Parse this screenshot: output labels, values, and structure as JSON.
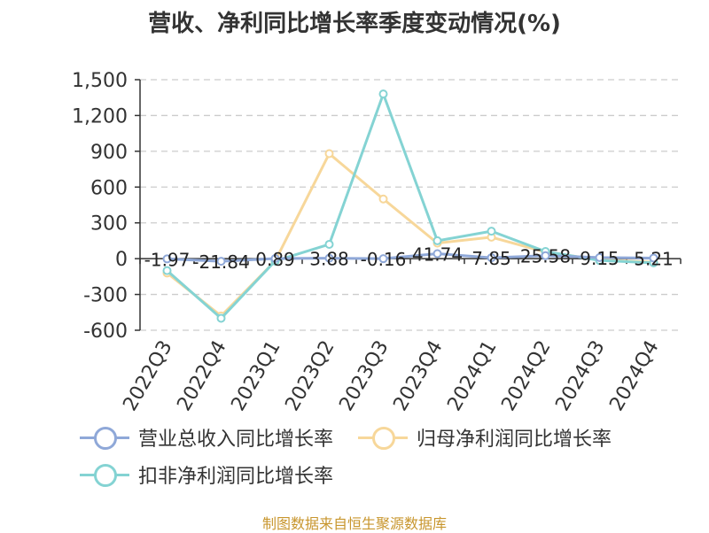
{
  "title": "营收、净利同比增长率季度变动情况(%)",
  "source": "制图数据来自恒生聚源数据库",
  "chart_data": {
    "type": "line",
    "title": "营收、净利同比增长率季度变动情况(%)",
    "categories": [
      "2022Q3",
      "2022Q4",
      "2023Q1",
      "2023Q2",
      "2023Q3",
      "2023Q4",
      "2024Q1",
      "2024Q2",
      "2024Q3",
      "2024Q4"
    ],
    "ylim": [
      -600,
      1500
    ],
    "yticks": [
      -600,
      -300,
      0,
      300,
      600,
      900,
      1200,
      1500
    ],
    "ytick_labels": [
      "-600",
      "-300",
      "0",
      "300",
      "600",
      "900",
      "1,200",
      "1,500"
    ],
    "grid": true,
    "legend_position": "bottom-left",
    "series": [
      {
        "name": "营业总收入同比增长率",
        "color": "#8fa8d8",
        "values": [
          -1.97,
          -21.84,
          0.89,
          3.88,
          -0.16,
          41.74,
          7.85,
          25.58,
          9.15,
          5.21
        ],
        "labels": [
          "-1.97",
          "-21.84",
          "0.89",
          "3.88",
          "-0.16",
          "41.74",
          "7.85",
          "25.58",
          "9.15",
          "5.21"
        ]
      },
      {
        "name": "归母净利润同比增长率",
        "color": "#f7d79a",
        "values": [
          -120,
          -480,
          -20,
          880,
          500,
          130,
          180,
          55,
          -10,
          -30
        ]
      },
      {
        "name": "扣非净利润同比增长率",
        "color": "#84d3d3",
        "values": [
          -100,
          -500,
          -20,
          120,
          1380,
          150,
          230,
          60,
          -15,
          -35
        ]
      }
    ]
  }
}
